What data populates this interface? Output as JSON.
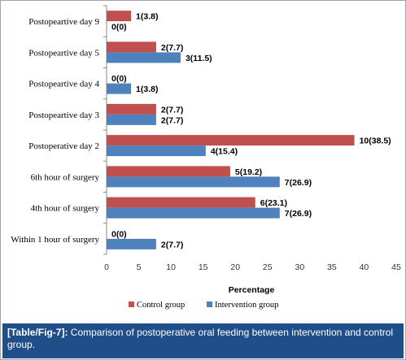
{
  "chart_data": {
    "type": "bar",
    "orientation": "horizontal",
    "categories": [
      "Postopeartive day 9",
      "Postopeartive day 5",
      "Postopeartive day 4",
      "Postopeartive day 3",
      "Postoperative day 2",
      "6th hour of surgery",
      "4th hour of surgery",
      "Within 1 hour of surgery"
    ],
    "series": [
      {
        "name": "Control group",
        "color": "#c0504d",
        "values": [
          3.8,
          7.7,
          0,
          7.7,
          38.5,
          19.2,
          23.1,
          0
        ],
        "labels": [
          "1(3.8)",
          "2(7.7)",
          "0(0)",
          "2(7.7)",
          "10(38.5)",
          "5(19.2)",
          "6(23.1)",
          "0(0)"
        ]
      },
      {
        "name": "Intervention group",
        "color": "#4f81bd",
        "values": [
          0,
          11.5,
          3.8,
          7.7,
          15.4,
          26.9,
          26.9,
          7.7
        ],
        "labels": [
          "0(0)",
          "3(11.5)",
          "1(3.8)",
          "2(7.7)",
          "4(15.4)",
          "7(26.9)",
          "7(26.9)",
          "2(7.7)"
        ]
      }
    ],
    "xlabel": "Percentage",
    "xlim": [
      0,
      45
    ],
    "xticks": [
      0,
      5,
      10,
      15,
      20,
      25,
      30,
      35,
      40,
      45
    ],
    "grid": false,
    "legend": "bottom"
  },
  "caption": {
    "label": "[Table/Fig-7]:",
    "text": "Comparison of postoperative oral feeding between intervention and control group."
  }
}
